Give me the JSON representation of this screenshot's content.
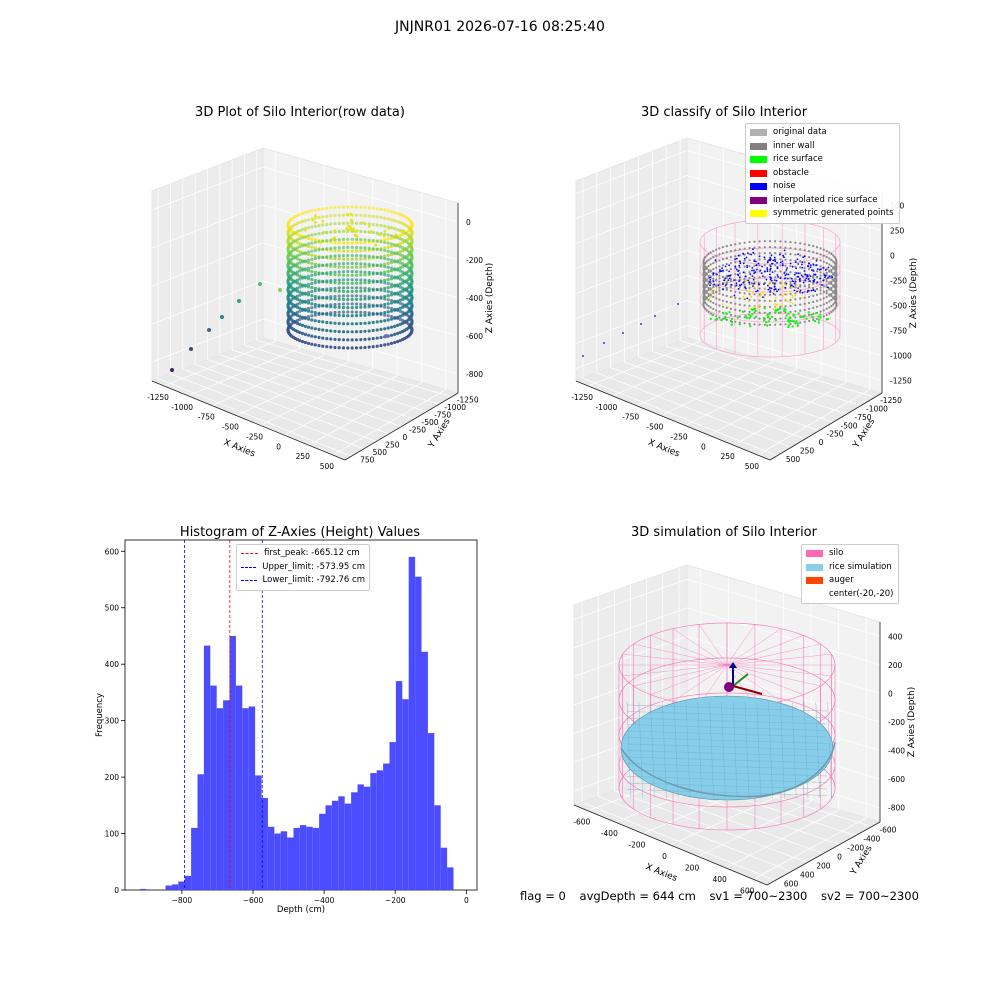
{
  "figure": {
    "suptitle": "JNJNR01 2026-07-16 08:25:40"
  },
  "chart_data": [
    {
      "type": "scatter",
      "panel": "raw",
      "title": "3D Plot of Silo Interior(row data)",
      "xlabel": "X Axies",
      "ylabel": "Y Axies",
      "zlabel": "Z Axies (Depth)",
      "x_ticks": [
        "-1250",
        "-1000",
        "-750",
        "-500",
        "-250",
        "0",
        "250",
        "500"
      ],
      "y_ticks": [
        "750",
        "500",
        "250",
        "0",
        "-250",
        "-500",
        "-750",
        "-1000",
        "-1250"
      ],
      "z_ticks": [
        "0",
        "-200",
        "-400",
        "-600",
        "-800"
      ],
      "colormap": "viridis",
      "cloud": {
        "center_x": -20,
        "center_y": -20,
        "radius": 520,
        "z_top": -100,
        "z_bottom": -900
      },
      "stray_points": [
        {
          "x": -1250,
          "y": -1200,
          "z": -800
        },
        {
          "x": -1150,
          "y": -1100,
          "z": -700
        },
        {
          "x": -1050,
          "y": -1000,
          "z": -600
        },
        {
          "x": -1000,
          "y": -950,
          "z": -550
        },
        {
          "x": -900,
          "y": -850,
          "z": -480
        },
        {
          "x": -820,
          "y": -780,
          "z": -420
        },
        {
          "x": -700,
          "y": -680,
          "z": -380
        }
      ]
    },
    {
      "type": "scatter",
      "panel": "classified",
      "title": "3D classify of Silo Interior",
      "xlabel": "X Axies",
      "ylabel": "Y Axies",
      "zlabel": "Z Axies (Depth)",
      "x_ticks": [
        "-1250",
        "-1000",
        "-750",
        "-500",
        "-250",
        "0",
        "250",
        "500"
      ],
      "y_ticks": [
        "500",
        "250",
        "0",
        "-250",
        "-500",
        "-750",
        "-1000",
        "-1250"
      ],
      "z_ticks": [
        "500",
        "250",
        "0",
        "-250",
        "-500",
        "-750",
        "-1000",
        "-1250"
      ],
      "legend": [
        {
          "label": "original data",
          "color": "#b0b0b0"
        },
        {
          "label": "inner wall",
          "color": "#808080"
        },
        {
          "label": "rice surface",
          "color": "#00ff00"
        },
        {
          "label": "obstacle",
          "color": "#ff0000"
        },
        {
          "label": "noise",
          "color": "#0000ff"
        },
        {
          "label": "interpolated rice surface",
          "color": "#800080"
        },
        {
          "label": "symmetric generated points",
          "color": "#ffff00"
        }
      ]
    },
    {
      "type": "bar",
      "panel": "histogram",
      "title": "Histogram of Z-Axies (Height) Values",
      "xlabel": "Depth (cm)",
      "ylabel": "Frequency",
      "xlim": [
        -960,
        30
      ],
      "ylim": [
        0,
        620
      ],
      "x_ticks": [
        -800,
        -600,
        -400,
        -200,
        0
      ],
      "y_ticks": [
        0,
        100,
        200,
        300,
        400,
        500,
        600
      ],
      "bar_color": "#4c4cff",
      "bin_width": 18,
      "bins": [
        {
          "x": -918,
          "v": 2
        },
        {
          "x": -900,
          "v": 0
        },
        {
          "x": -882,
          "v": 0
        },
        {
          "x": -864,
          "v": 0
        },
        {
          "x": -846,
          "v": 8
        },
        {
          "x": -828,
          "v": 10
        },
        {
          "x": -810,
          "v": 15
        },
        {
          "x": -792,
          "v": 25
        },
        {
          "x": -774,
          "v": 110
        },
        {
          "x": -756,
          "v": 205
        },
        {
          "x": -738,
          "v": 433
        },
        {
          "x": -720,
          "v": 362
        },
        {
          "x": -702,
          "v": 322
        },
        {
          "x": -684,
          "v": 336
        },
        {
          "x": -666,
          "v": 450
        },
        {
          "x": -648,
          "v": 362
        },
        {
          "x": -630,
          "v": 322
        },
        {
          "x": -612,
          "v": 325
        },
        {
          "x": -594,
          "v": 203
        },
        {
          "x": -576,
          "v": 163
        },
        {
          "x": -558,
          "v": 112
        },
        {
          "x": -540,
          "v": 100
        },
        {
          "x": -522,
          "v": 104
        },
        {
          "x": -504,
          "v": 93
        },
        {
          "x": -486,
          "v": 110
        },
        {
          "x": -468,
          "v": 115
        },
        {
          "x": -450,
          "v": 112
        },
        {
          "x": -432,
          "v": 110
        },
        {
          "x": -414,
          "v": 135
        },
        {
          "x": -396,
          "v": 150
        },
        {
          "x": -378,
          "v": 158
        },
        {
          "x": -360,
          "v": 166
        },
        {
          "x": -342,
          "v": 153
        },
        {
          "x": -324,
          "v": 173
        },
        {
          "x": -306,
          "v": 187
        },
        {
          "x": -288,
          "v": 183
        },
        {
          "x": -270,
          "v": 207
        },
        {
          "x": -252,
          "v": 212
        },
        {
          "x": -234,
          "v": 224
        },
        {
          "x": -216,
          "v": 262
        },
        {
          "x": -198,
          "v": 370
        },
        {
          "x": -180,
          "v": 338
        },
        {
          "x": -162,
          "v": 590
        },
        {
          "x": -144,
          "v": 555
        },
        {
          "x": -126,
          "v": 422
        },
        {
          "x": -108,
          "v": 278
        },
        {
          "x": -90,
          "v": 150
        },
        {
          "x": -72,
          "v": 75
        },
        {
          "x": -54,
          "v": 40
        }
      ],
      "vlines": [
        {
          "x": -665.12,
          "color": "#ff0000",
          "label": "first_peak: -665.12 cm"
        },
        {
          "x": -573.95,
          "color": "#0000ff",
          "label": "Upper_limit: -573.95 cm"
        },
        {
          "x": -792.76,
          "color": "#0000ff",
          "label": "Lower_limit: -792.76 cm"
        }
      ]
    },
    {
      "type": "surface",
      "panel": "simulation",
      "title": "3D simulation of Silo Interior",
      "xlabel": "X Axies",
      "ylabel": "Y Axies",
      "zlabel": "Z Axies (Depth)",
      "x_ticks": [
        "-600",
        "-400",
        "-200",
        "0",
        "200",
        "400",
        "600"
      ],
      "y_ticks": [
        "600",
        "400",
        "200",
        "0",
        "-200",
        "-400",
        "-600"
      ],
      "z_ticks": [
        "400",
        "200",
        "0",
        "-200",
        "-400",
        "-600",
        "-800"
      ],
      "legend": [
        {
          "label": "silo",
          "color": "#ff69b4"
        },
        {
          "label": "rice simulation",
          "color": "#87ceeb"
        },
        {
          "label": "auger",
          "color": "#ff4500"
        },
        {
          "label": "center(-20,-20)",
          "color": ""
        }
      ],
      "silo": {
        "radius": 620,
        "z_top": 300,
        "z_bottom": -1000
      },
      "rice": {
        "avg_depth": -644
      },
      "auger_center": [
        -20,
        -20
      ]
    }
  ],
  "footer": {
    "flag": "flag = 0",
    "avg_depth": "avgDepth = 644 cm",
    "sv1": "sv1 = 700~2300",
    "sv2": "sv2 = 700~2300"
  }
}
